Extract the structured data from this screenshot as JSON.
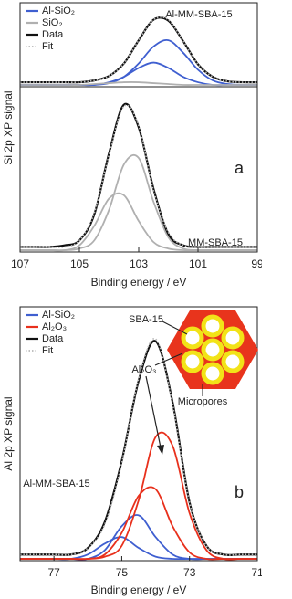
{
  "chart_data": [
    {
      "type": "line",
      "legend": "upper left",
      "sample_label": "Al-MM-SBA-15",
      "xlim": [
        107,
        99
      ],
      "ylim": [
        0,
        0.9
      ],
      "x": [
        107,
        106.5,
        106,
        105.5,
        105,
        104.5,
        104,
        103.5,
        103,
        102.5,
        102,
        101.5,
        101,
        100.5,
        100,
        99.5,
        99
      ],
      "series": [
        {
          "name": "Al-SiO₂",
          "color": "#3f5fd0",
          "style": "solid",
          "values": [
            0,
            0,
            0,
            0,
            0,
            0,
            0.02,
            0.09,
            0.24,
            0.43,
            0.5,
            0.36,
            0.17,
            0.05,
            0.01,
            0,
            0
          ]
        },
        {
          "color": "#3f5fd0",
          "style": "solid",
          "values": [
            0,
            0,
            0,
            0,
            0,
            0,
            0.03,
            0.09,
            0.19,
            0.25,
            0.19,
            0.09,
            0.03,
            0,
            0,
            0,
            0
          ]
        },
        {
          "name": "SiO₂",
          "color": "#b0b0b0",
          "style": "solid",
          "values": [
            0,
            0,
            0,
            0,
            0,
            0.01,
            0.02,
            0.03,
            0.03,
            0.02,
            0.01,
            0,
            0,
            0,
            0,
            0,
            0
          ]
        },
        {
          "name": "Data",
          "color": "#111111",
          "style": "solid",
          "values": [
            0.03,
            0.03,
            0.03,
            0.03,
            0.03,
            0.05,
            0.1,
            0.24,
            0.5,
            0.73,
            0.72,
            0.49,
            0.23,
            0.09,
            0.04,
            0.03,
            0.03
          ]
        },
        {
          "name": "Fit",
          "color": "#b8b8b8",
          "style": "dotted",
          "values": [
            0.03,
            0.03,
            0.03,
            0.03,
            0.03,
            0.05,
            0.1,
            0.24,
            0.5,
            0.73,
            0.73,
            0.49,
            0.23,
            0.09,
            0.04,
            0.03,
            0.03
          ]
        }
      ]
    },
    {
      "type": "line",
      "sample_label": "MM-SBA-15",
      "panel_label": "a",
      "x_label": "Binding energy / eV",
      "y_label": "Si 2p XP signal",
      "xlim": [
        107,
        99
      ],
      "xticks": [
        107,
        105,
        103,
        101,
        99
      ],
      "ylim": [
        0,
        1
      ],
      "x": [
        107,
        106.5,
        106,
        105.5,
        105,
        104.5,
        104,
        103.5,
        103,
        102.5,
        102,
        101.5,
        101,
        100.5,
        100,
        99.5,
        99
      ],
      "series": [
        {
          "color": "#b0b0b0",
          "style": "solid",
          "values": [
            0,
            0,
            0,
            0,
            0.01,
            0.06,
            0.25,
            0.53,
            0.57,
            0.3,
            0.08,
            0.01,
            0,
            0,
            0,
            0,
            0
          ]
        },
        {
          "color": "#b0b0b0",
          "style": "solid",
          "values": [
            0,
            0,
            0,
            0,
            0.03,
            0.15,
            0.32,
            0.34,
            0.18,
            0.05,
            0.01,
            0,
            0,
            0,
            0,
            0,
            0
          ]
        },
        {
          "color": "#111111",
          "style": "solid",
          "values": [
            0.02,
            0.02,
            0.02,
            0.03,
            0.06,
            0.22,
            0.6,
            0.9,
            0.76,
            0.38,
            0.1,
            0.03,
            0.02,
            0.02,
            0.02,
            0.02,
            0.02
          ]
        },
        {
          "color": "#b8b8b8",
          "style": "dotted",
          "values": [
            0.02,
            0.02,
            0.02,
            0.02,
            0.06,
            0.23,
            0.59,
            0.89,
            0.77,
            0.37,
            0.11,
            0.03,
            0.02,
            0.02,
            0.02,
            0.02,
            0.02
          ]
        }
      ]
    },
    {
      "type": "line",
      "legend": "upper left",
      "sample_label": "Al-MM-SBA-15",
      "panel_label": "b",
      "x_label": "Binding energy / eV",
      "y_label": "Al 2p XP signal",
      "inset_labels": [
        "SBA-15",
        "Al₂O₃",
        "Micropores"
      ],
      "xlim": [
        78,
        71
      ],
      "xticks": [
        77,
        75,
        73,
        71
      ],
      "ylim": [
        0,
        1.15
      ],
      "x": [
        78,
        77.5,
        77,
        76.5,
        76,
        75.5,
        75,
        74.5,
        74,
        73.5,
        73,
        72.5,
        72,
        71.5,
        71
      ],
      "series": [
        {
          "name": "Al-SiO₂",
          "color": "#3f5fd0",
          "style": "solid",
          "values": [
            0,
            0,
            0,
            0,
            0,
            0.04,
            0.15,
            0.2,
            0.1,
            0.02,
            0,
            0,
            0,
            0,
            0
          ]
        },
        {
          "color": "#3f5fd0",
          "style": "solid",
          "values": [
            0,
            0,
            0,
            0,
            0.02,
            0.07,
            0.1,
            0.05,
            0.01,
            0,
            0,
            0,
            0,
            0,
            0
          ]
        },
        {
          "name": "Al₂O₃",
          "color": "#e8301c",
          "style": "solid",
          "values": [
            0,
            0,
            0,
            0,
            0,
            0.01,
            0.06,
            0.27,
            0.56,
            0.52,
            0.21,
            0.04,
            0,
            0,
            0
          ]
        },
        {
          "color": "#e8301c",
          "style": "solid",
          "values": [
            0,
            0,
            0,
            0,
            0,
            0.02,
            0.12,
            0.29,
            0.32,
            0.15,
            0.03,
            0,
            0,
            0,
            0
          ]
        },
        {
          "name": "Data",
          "color": "#111111",
          "style": "solid",
          "values": [
            0.02,
            0.02,
            0.02,
            0.02,
            0.05,
            0.17,
            0.45,
            0.82,
            1.0,
            0.72,
            0.26,
            0.06,
            0.02,
            0.02,
            0.02
          ]
        },
        {
          "name": "Fit",
          "color": "#b8b8b8",
          "style": "dotted",
          "values": [
            0.02,
            0.02,
            0.02,
            0.02,
            0.05,
            0.16,
            0.44,
            0.83,
            1.01,
            0.71,
            0.26,
            0.06,
            0.02,
            0.02,
            0.02
          ]
        }
      ]
    }
  ]
}
